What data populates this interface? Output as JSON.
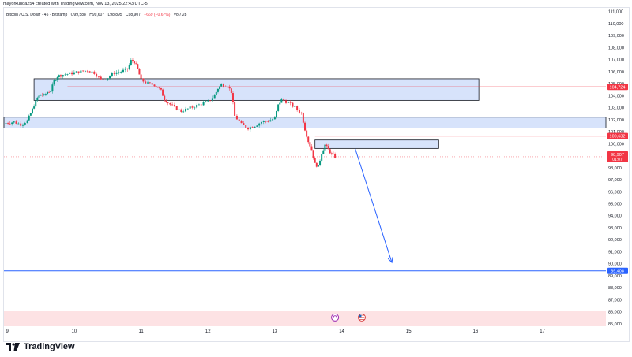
{
  "header": {
    "author_line": "mayorkunda254 created with TradingView.com, Nov 13, 2025 22:43 UTC-5"
  },
  "symbol": {
    "name": "Bitcoin / U.S. Dollar · 45 · Bitstamp",
    "open": "O99,588",
    "high": "H99,607",
    "low": "L98,895",
    "close": "C98,907",
    "change": "−669 (−0.67%)",
    "volume": "Vol7.28"
  },
  "logo": {
    "text": "TradingView"
  },
  "chart_data": {
    "type": "candlestick",
    "x_ticks": [
      "9",
      "10",
      "11",
      "12",
      "13",
      "14",
      "15",
      "16",
      "17"
    ],
    "y_ticks": [
      "111,000",
      "110,000",
      "109,000",
      "108,000",
      "107,000",
      "106,000",
      "105,000",
      "104,000",
      "103,000",
      "102,000",
      "101,000",
      "100,000",
      "99,000",
      "98,000",
      "97,000",
      "96,000",
      "95,000",
      "94,000",
      "93,000",
      "92,000",
      "91,000",
      "90,000",
      "89,000",
      "88,000",
      "87,000",
      "86,000",
      "85,000"
    ],
    "ylim": [
      84800,
      111300
    ],
    "xlim": [
      8.95,
      17.95
    ],
    "close_path": [
      [
        8.95,
        101700
      ],
      [
        9.1,
        101800
      ],
      [
        9.2,
        101600
      ],
      [
        9.3,
        101900
      ],
      [
        9.35,
        102500
      ],
      [
        9.4,
        103200
      ],
      [
        9.45,
        103800
      ],
      [
        9.5,
        104100
      ],
      [
        9.55,
        104000
      ],
      [
        9.6,
        104300
      ],
      [
        9.65,
        104400
      ],
      [
        9.7,
        105200
      ],
      [
        9.75,
        105600
      ],
      [
        9.8,
        105700
      ],
      [
        9.9,
        105800
      ],
      [
        10.0,
        105900
      ],
      [
        10.1,
        106000
      ],
      [
        10.2,
        106100
      ],
      [
        10.3,
        105900
      ],
      [
        10.4,
        105300
      ],
      [
        10.5,
        105500
      ],
      [
        10.6,
        105900
      ],
      [
        10.7,
        106000
      ],
      [
        10.8,
        106200
      ],
      [
        10.85,
        106900
      ],
      [
        10.9,
        106800
      ],
      [
        10.95,
        106200
      ],
      [
        11.0,
        105300
      ],
      [
        11.1,
        105000
      ],
      [
        11.2,
        104900
      ],
      [
        11.25,
        104700
      ],
      [
        11.3,
        104400
      ],
      [
        11.35,
        103700
      ],
      [
        11.4,
        103400
      ],
      [
        11.5,
        103000
      ],
      [
        11.6,
        102700
      ],
      [
        11.7,
        102900
      ],
      [
        11.8,
        103100
      ],
      [
        11.9,
        103300
      ],
      [
        12.0,
        103500
      ],
      [
        12.1,
        104000
      ],
      [
        12.15,
        104600
      ],
      [
        12.2,
        104900
      ],
      [
        12.3,
        104800
      ],
      [
        12.35,
        104300
      ],
      [
        12.4,
        102300
      ],
      [
        12.5,
        101600
      ],
      [
        12.6,
        101300
      ],
      [
        12.7,
        101500
      ],
      [
        12.8,
        101800
      ],
      [
        12.9,
        101900
      ],
      [
        13.0,
        102100
      ],
      [
        13.05,
        103200
      ],
      [
        13.1,
        103700
      ],
      [
        13.2,
        103400
      ],
      [
        13.3,
        103000
      ],
      [
        13.4,
        102500
      ],
      [
        13.45,
        101200
      ],
      [
        13.5,
        100200
      ],
      [
        13.55,
        99500
      ],
      [
        13.6,
        98300
      ],
      [
        13.65,
        98100
      ],
      [
        13.7,
        99200
      ],
      [
        13.75,
        99900
      ],
      [
        13.8,
        99500
      ],
      [
        13.85,
        99100
      ],
      [
        13.9,
        98907
      ]
    ],
    "zones": [
      {
        "from_x": 9.4,
        "to_x": 16.05,
        "y_low": 103600,
        "y_high": 105400
      },
      {
        "from_x": 8.95,
        "to_x": 17.95,
        "y_low": 101300,
        "y_high": 102200
      },
      {
        "from_x": 13.6,
        "to_x": 15.45,
        "y_low": 99600,
        "y_high": 100300
      },
      {
        "from_x": 8.95,
        "to_x": 17.95,
        "y_low": 84800,
        "y_high": 86100
      }
    ],
    "levels": [
      {
        "label": "104,724",
        "price": 104724,
        "from_x": 9.9,
        "color": "#f23645"
      },
      {
        "label": "100,632",
        "price": 100632,
        "from_x": 13.6,
        "color": "#f23645"
      },
      {
        "label": "89,408",
        "price": 89408,
        "from_x": 8.95,
        "color": "#2962ff"
      }
    ],
    "last_price": {
      "label": "98,907",
      "countdown": "01:07",
      "price": 98907,
      "color": "#f23645"
    },
    "arrow": {
      "from": [
        14.2,
        99600
      ],
      "to": [
        14.75,
        90100
      ],
      "color": "#2962ff"
    },
    "marker_icons": [
      {
        "name": "event-flag-icon",
        "x": 13.9,
        "y": 85400
      },
      {
        "name": "us-flag-icon",
        "x": 14.3,
        "y": 85400
      }
    ]
  }
}
